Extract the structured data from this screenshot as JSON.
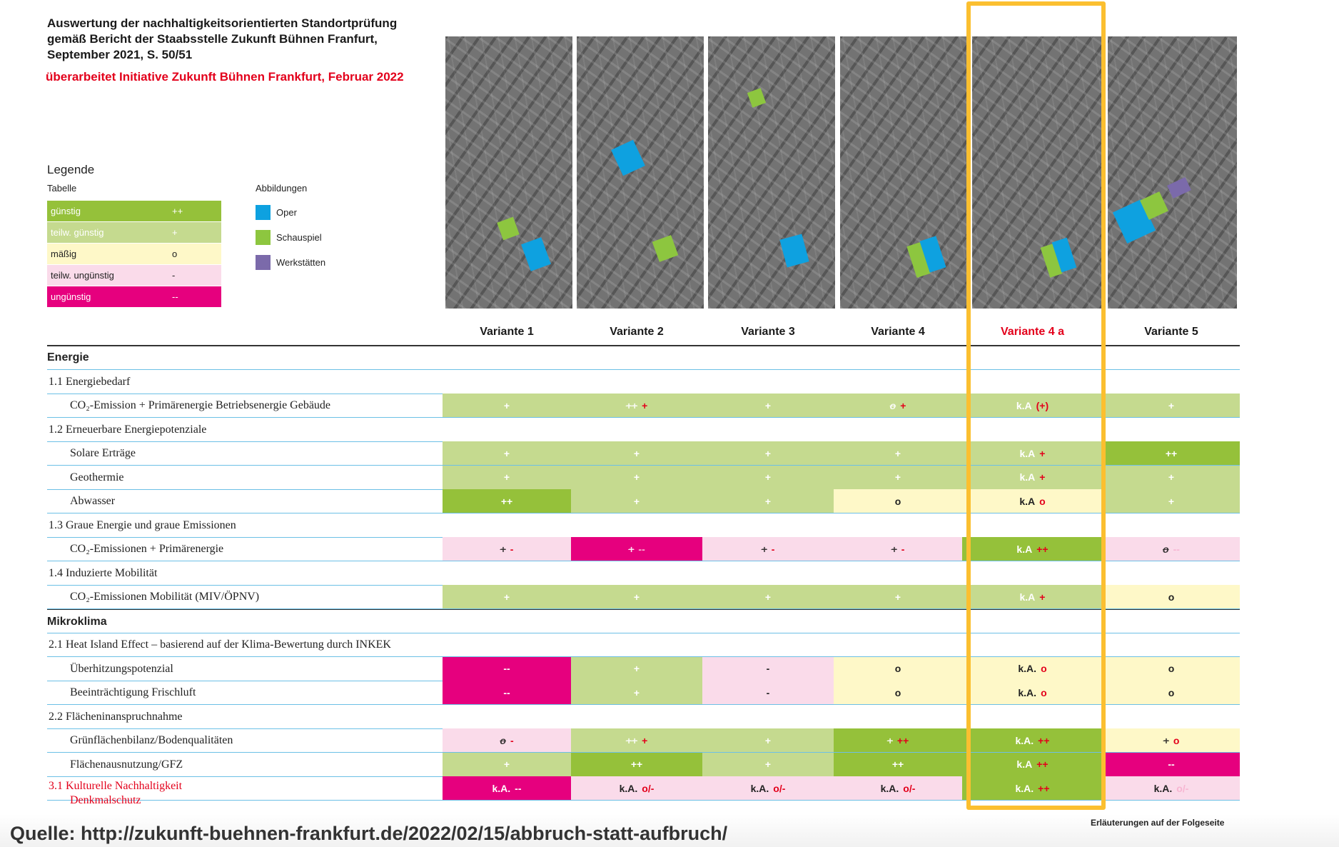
{
  "title": "Auswertung der nachhaltigkeitsorientierten Standortprüfung gemäß Bericht der Staabsstelle Zukunft Bühnen Franfurt, September 2021, S. 50/51",
  "subtitle": "überarbeitet Initiative Zukunft Bühnen Frankfurt, Februar 2022",
  "legend": {
    "heading": "Legende",
    "table_label": "Tabelle",
    "figures_label": "Abbildungen",
    "items": [
      {
        "label": "günstig",
        "symbol": "++",
        "color": "#95c13a"
      },
      {
        "label": "teilw. günstig",
        "symbol": "+",
        "color": "#c5da8f"
      },
      {
        "label": "mäßig",
        "symbol": "o",
        "color": "#fef8c8"
      },
      {
        "label": "teilw. ungünstig",
        "symbol": "-",
        "color": "#fadbea"
      },
      {
        "label": "ungünstig",
        "symbol": "--",
        "color": "#e6007e"
      }
    ],
    "figures": [
      {
        "label": "Oper",
        "color": "#0ea1e0"
      },
      {
        "label": "Schauspiel",
        "color": "#8dc63f"
      },
      {
        "label": "Werkstätten",
        "color": "#7b6aaa"
      }
    ]
  },
  "columns": [
    "Variante 1",
    "Variante 2",
    "Variante 3",
    "Variante 4",
    "Variante 4 a",
    "Variante 5"
  ],
  "highlight_color": "#fbbf30",
  "rows": [
    {
      "type": "section",
      "label": "Energie"
    },
    {
      "type": "group",
      "label": "1.1  Energiebedarf"
    },
    {
      "type": "item",
      "label": "CO₂-Emission + Primärenergie Betriebsenergie Gebäude",
      "cells": [
        {
          "bg": "lg",
          "v": "+"
        },
        {
          "bg": "lg",
          "old": "++",
          "r": "+"
        },
        {
          "bg": "lg",
          "v": "+"
        },
        {
          "bg": "lg",
          "old": "o",
          "r": "+"
        },
        {
          "bg": "lg",
          "v": "k.A",
          "r": "(+)"
        },
        {
          "bg": "lg",
          "v": "+"
        }
      ]
    },
    {
      "type": "group",
      "label": "1.2  Erneuerbare Energiepotenziale"
    },
    {
      "type": "item",
      "label": "Solare Erträge",
      "cells": [
        {
          "bg": "lg",
          "v": "+"
        },
        {
          "bg": "lg",
          "v": "+"
        },
        {
          "bg": "lg",
          "v": "+"
        },
        {
          "bg": "lg",
          "v": "+"
        },
        {
          "bg": "lg",
          "v": "k.A",
          "r": "+"
        },
        {
          "bg": "dg",
          "v": "++"
        }
      ]
    },
    {
      "type": "item",
      "label": "Geothermie",
      "cells": [
        {
          "bg": "lg",
          "v": "+"
        },
        {
          "bg": "lg",
          "v": "+"
        },
        {
          "bg": "lg",
          "v": "+"
        },
        {
          "bg": "lg",
          "v": "+"
        },
        {
          "bg": "lg",
          "v": "k.A",
          "r": "+"
        },
        {
          "bg": "lg",
          "v": "+"
        }
      ]
    },
    {
      "type": "item",
      "label": "Abwasser",
      "cells": [
        {
          "bg": "dg",
          "v": "++"
        },
        {
          "bg": "lg",
          "v": "+"
        },
        {
          "bg": "lg",
          "v": "+"
        },
        {
          "bg": "y",
          "v": "o"
        },
        {
          "bg": "y",
          "v": "k.A",
          "r": "o"
        },
        {
          "bg": "lg",
          "v": "+"
        }
      ]
    },
    {
      "type": "group",
      "label": "1.3  Graue Energie und graue Emissionen"
    },
    {
      "type": "item",
      "label": "CO₂-Emissionen + Primärenergie",
      "cells": [
        {
          "bg": "p",
          "old": "+",
          "r": "-"
        },
        {
          "bg": "m",
          "old": "+",
          "r": "--"
        },
        {
          "bg": "p",
          "old": "+",
          "r": "-"
        },
        {
          "bg": "p",
          "old": "+",
          "r": "-"
        },
        {
          "bg": "dg",
          "v": "k.A",
          "r": "++"
        },
        {
          "bg": "p",
          "old": "o",
          "r": "--"
        }
      ]
    },
    {
      "type": "group",
      "label": "1.4  Induzierte Mobilität"
    },
    {
      "type": "item",
      "label": "CO₂-Emissionen Mobilität (MIV/ÖPNV)",
      "cells": [
        {
          "bg": "lg",
          "v": "+"
        },
        {
          "bg": "lg",
          "v": "+"
        },
        {
          "bg": "lg",
          "v": "+"
        },
        {
          "bg": "lg",
          "v": "+"
        },
        {
          "bg": "lg",
          "v": "k.A",
          "r": "+"
        },
        {
          "bg": "y",
          "v": "o"
        }
      ]
    },
    {
      "type": "section",
      "label": "Mikroklima"
    },
    {
      "type": "group",
      "label": "2.1  Heat Island Effect – basierend auf der Klima-Bewertung durch INKEK"
    },
    {
      "type": "item",
      "label": "Überhitzungspotenzial",
      "cells": [
        {
          "bg": "m",
          "v": "--"
        },
        {
          "bg": "lg",
          "v": "+"
        },
        {
          "bg": "p",
          "v": "-"
        },
        {
          "bg": "y",
          "v": "o"
        },
        {
          "bg": "y",
          "v": "k.A.",
          "r": "o"
        },
        {
          "bg": "y",
          "v": "o"
        }
      ]
    },
    {
      "type": "item",
      "label": "Beeinträchtigung Frischluft",
      "cells": [
        {
          "bg": "m",
          "v": "--"
        },
        {
          "bg": "lg",
          "v": "+"
        },
        {
          "bg": "p",
          "v": "-"
        },
        {
          "bg": "y",
          "v": "o"
        },
        {
          "bg": "y",
          "v": "k.A.",
          "r": "o"
        },
        {
          "bg": "y",
          "v": "o"
        }
      ]
    },
    {
      "type": "group",
      "label": "2.2  Flächeninanspruchnahme"
    },
    {
      "type": "item",
      "label": "Grünflächenbilanz/Bodenqualitäten",
      "cells": [
        {
          "bg": "p",
          "old": "o",
          "r": "-"
        },
        {
          "bg": "lg",
          "old": "++",
          "r": "+"
        },
        {
          "bg": "lg",
          "v": "+"
        },
        {
          "bg": "dg",
          "old": "+",
          "r": "++"
        },
        {
          "bg": "dg",
          "v": "k.A.",
          "r": "++"
        },
        {
          "bg": "y",
          "old": "+",
          "r": "o"
        }
      ]
    },
    {
      "type": "item",
      "label": "Flächenausnutzung/GFZ",
      "cells": [
        {
          "bg": "lg",
          "v": "+"
        },
        {
          "bg": "dg",
          "v": "++"
        },
        {
          "bg": "lg",
          "v": "+"
        },
        {
          "bg": "dg",
          "v": "++"
        },
        {
          "bg": "dg",
          "v": "k.A",
          "r": "++"
        },
        {
          "bg": "m",
          "v": "--"
        }
      ]
    },
    {
      "type": "red",
      "label": "3.1  Kulturelle Nachhaltigkeit",
      "label2": "Denkmalschutz",
      "cells": [
        {
          "bg": "m",
          "v": "k.A.",
          "w": "--"
        },
        {
          "bg": "p",
          "v": "k.A.",
          "r": "o/-"
        },
        {
          "bg": "p",
          "v": "k.A.",
          "r": "o/-"
        },
        {
          "bg": "p",
          "v": "k.A.",
          "r": "o/-"
        },
        {
          "bg": "dg",
          "v": "k.A.",
          "r": "++"
        },
        {
          "bg": "p",
          "v": "k.A.",
          "r": "o/-"
        }
      ]
    }
  ],
  "note": "Erläuterungen auf der Folgeseite",
  "source": "Quelle: http://zukunft-buehnen-frankfurt.de/2022/02/15/abbruch-statt-aufbruch/"
}
